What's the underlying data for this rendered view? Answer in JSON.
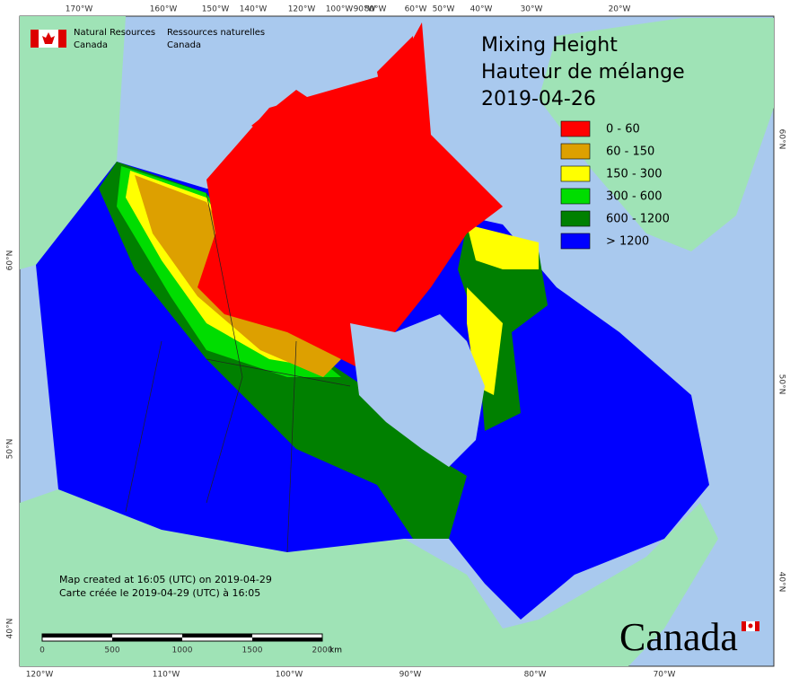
{
  "header": {
    "department_en": [
      "Natural Resources",
      "Canada"
    ],
    "department_fr": [
      "Ressources naturelles",
      "Canada"
    ],
    "title": [
      "Mixing Height",
      "Hauteur de mélange",
      "2019-04-26"
    ]
  },
  "legend": [
    {
      "label": "0 - 60",
      "color": "#ff0000"
    },
    {
      "label": "60 - 150",
      "color": "#dda000"
    },
    {
      "label": "150 - 300",
      "color": "#ffff00"
    },
    {
      "label": "300 - 600",
      "color": "#00dd00"
    },
    {
      "label": "600 - 1200",
      "color": "#008000"
    },
    {
      "label": "> 1200",
      "color": "#0000ff"
    }
  ],
  "graticule": {
    "top": [
      "170°W",
      "160°W",
      "150°W",
      "140°W",
      "120°W",
      "100°W",
      "90°W",
      "80°W",
      "60°W",
      "50°W",
      "40°W",
      "30°W",
      "20°W"
    ],
    "bottom": [
      "120°W",
      "110°W",
      "100°W",
      "90°W",
      "80°W",
      "70°W"
    ],
    "left": [
      "60°N",
      "50°N",
      "40°N"
    ],
    "right": [
      "60°N",
      "50°N",
      "40°N"
    ]
  },
  "footnote": [
    "Map created at 16:05 (UTC) on 2019-04-29",
    "Carte créée le 2019-04-29 (UTC) à 16:05"
  ],
  "scale": {
    "ticks": [
      "0",
      "500",
      "1000",
      "1500",
      "2000"
    ],
    "unit": "km"
  },
  "wordmark": "Canada"
}
